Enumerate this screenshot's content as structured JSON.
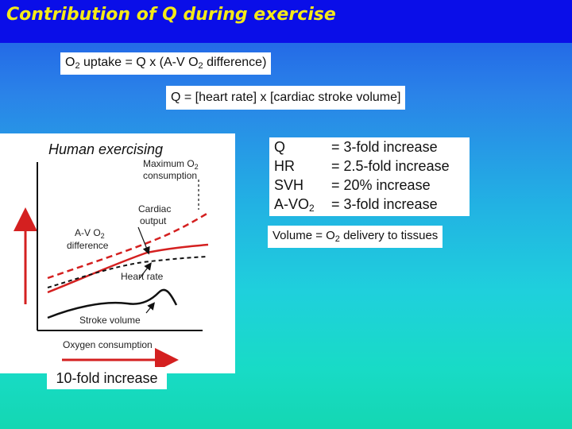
{
  "slide": {
    "title": "Contribution of Q during exercise",
    "formula_o2": {
      "prefix": "O",
      "sub1": "2",
      "middle": " uptake = Q x (A-V O",
      "sub2": "2",
      "suffix": " difference)"
    },
    "formula_q": "Q = [heart rate] x [cardiac stroke volume]",
    "figure": {
      "caption": "Human exercising",
      "label_max_o2_line1": "Maximum O",
      "label_max_o2_sub": "2",
      "label_max_o2_line2": "consumption",
      "label_cardiac_line1": "Cardiac",
      "label_cardiac_line2": "output",
      "label_avo2_line1": "A-V O",
      "label_avo2_sub": "2",
      "label_avo2_line2": "difference",
      "label_heart_rate": "Heart rate",
      "label_stroke_volume": "Stroke volume",
      "label_x_axis": "Oxygen consumption",
      "colors": {
        "red": "#d42020",
        "black": "#111111"
      }
    },
    "stats": [
      {
        "key": "Q",
        "key_sub": "",
        "value": "= 3-fold increase"
      },
      {
        "key": "HR",
        "key_sub": "",
        "value": "= 2.5-fold increase"
      },
      {
        "key": "SVH",
        "key_sub": "",
        "value": "= 20% increase"
      },
      {
        "key": "A-VO",
        "key_sub": "2",
        "value": "= 3-fold increase"
      }
    ],
    "volume_note": {
      "prefix": "Volume = O",
      "sub": "2",
      "suffix": " delivery to tissues"
    },
    "fold_increase": "10-fold increase",
    "colors": {
      "title_bar": "#0a0ee8",
      "title_text": "#f5ea18"
    }
  }
}
